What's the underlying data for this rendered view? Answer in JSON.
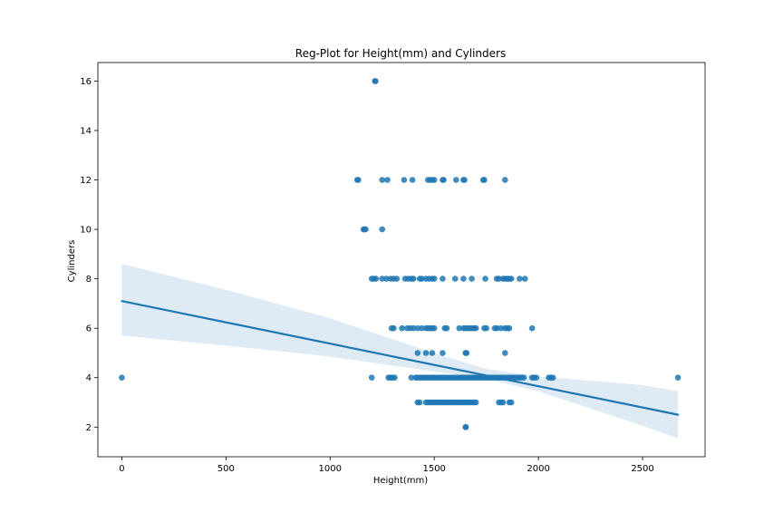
{
  "chart_data": {
    "type": "scatter",
    "title": "Reg-Plot for Height(mm) and Cylinders",
    "xlabel": "Height(mm)",
    "ylabel": "Cylinders",
    "xlim": [
      -115,
      2800
    ],
    "ylim": [
      0.8,
      16.75
    ],
    "xticks": [
      0,
      500,
      1000,
      1500,
      2000,
      2500
    ],
    "yticks": [
      2,
      4,
      6,
      8,
      10,
      12,
      14,
      16
    ],
    "grid": false,
    "legend": "none",
    "colors": {
      "points": "#1f77b4",
      "line": "#1f77b4",
      "band": "#1f77b4"
    },
    "point_opacity": 0.85,
    "band_opacity": 0.15,
    "series": [
      {
        "kind": "scatter",
        "points": [
          [
            1215,
            16
          ],
          [
            1218,
            16
          ],
          [
            1130,
            12
          ],
          [
            1135,
            12
          ],
          [
            1250,
            12
          ],
          [
            1275,
            12
          ],
          [
            1355,
            12
          ],
          [
            1395,
            12
          ],
          [
            1470,
            12
          ],
          [
            1480,
            12
          ],
          [
            1490,
            12
          ],
          [
            1500,
            12
          ],
          [
            1540,
            12
          ],
          [
            1545,
            12
          ],
          [
            1605,
            12
          ],
          [
            1640,
            12
          ],
          [
            1645,
            12
          ],
          [
            1735,
            12
          ],
          [
            1740,
            12
          ],
          [
            1840,
            12
          ],
          [
            1160,
            10
          ],
          [
            1165,
            10
          ],
          [
            1170,
            10
          ],
          [
            1250,
            10
          ],
          [
            1200,
            8
          ],
          [
            1210,
            8
          ],
          [
            1220,
            8
          ],
          [
            1250,
            8
          ],
          [
            1270,
            8
          ],
          [
            1290,
            8
          ],
          [
            1305,
            8
          ],
          [
            1320,
            8
          ],
          [
            1360,
            8
          ],
          [
            1375,
            8
          ],
          [
            1390,
            8
          ],
          [
            1400,
            8
          ],
          [
            1430,
            8
          ],
          [
            1440,
            8
          ],
          [
            1460,
            8
          ],
          [
            1475,
            8
          ],
          [
            1490,
            8
          ],
          [
            1500,
            8
          ],
          [
            1540,
            8
          ],
          [
            1600,
            8
          ],
          [
            1640,
            8
          ],
          [
            1680,
            8
          ],
          [
            1745,
            8
          ],
          [
            1800,
            8
          ],
          [
            1810,
            8
          ],
          [
            1830,
            8
          ],
          [
            1840,
            8
          ],
          [
            1850,
            8
          ],
          [
            1860,
            8
          ],
          [
            1870,
            8
          ],
          [
            1910,
            8
          ],
          [
            1935,
            8
          ],
          [
            1295,
            6
          ],
          [
            1305,
            6
          ],
          [
            1345,
            6
          ],
          [
            1370,
            6
          ],
          [
            1385,
            6
          ],
          [
            1400,
            6
          ],
          [
            1420,
            6
          ],
          [
            1440,
            6
          ],
          [
            1460,
            6
          ],
          [
            1470,
            6
          ],
          [
            1480,
            6
          ],
          [
            1490,
            6
          ],
          [
            1500,
            6
          ],
          [
            1550,
            6
          ],
          [
            1560,
            6
          ],
          [
            1620,
            6
          ],
          [
            1640,
            6
          ],
          [
            1650,
            6
          ],
          [
            1660,
            6
          ],
          [
            1670,
            6
          ],
          [
            1680,
            6
          ],
          [
            1690,
            6
          ],
          [
            1700,
            6
          ],
          [
            1740,
            6
          ],
          [
            1750,
            6
          ],
          [
            1790,
            6
          ],
          [
            1800,
            6
          ],
          [
            1820,
            6
          ],
          [
            1840,
            6
          ],
          [
            1850,
            6
          ],
          [
            1860,
            6
          ],
          [
            1970,
            6
          ],
          [
            1420,
            5
          ],
          [
            1460,
            5
          ],
          [
            1490,
            5
          ],
          [
            1540,
            5
          ],
          [
            1650,
            5
          ],
          [
            1655,
            5
          ],
          [
            1840,
            5
          ],
          [
            0,
            4
          ],
          [
            1200,
            4
          ],
          [
            1280,
            4
          ],
          [
            1290,
            4
          ],
          [
            1300,
            4
          ],
          [
            1310,
            4
          ],
          [
            1390,
            4
          ],
          [
            1410,
            4
          ],
          [
            1420,
            4
          ],
          [
            1430,
            4
          ],
          [
            1440,
            4
          ],
          [
            1450,
            4
          ],
          [
            1460,
            4
          ],
          [
            1470,
            4
          ],
          [
            1480,
            4
          ],
          [
            1490,
            4
          ],
          [
            1500,
            4
          ],
          [
            1510,
            4
          ],
          [
            1520,
            4
          ],
          [
            1530,
            4
          ],
          [
            1540,
            4
          ],
          [
            1550,
            4
          ],
          [
            1560,
            4
          ],
          [
            1570,
            4
          ],
          [
            1580,
            4
          ],
          [
            1590,
            4
          ],
          [
            1600,
            4
          ],
          [
            1610,
            4
          ],
          [
            1620,
            4
          ],
          [
            1630,
            4
          ],
          [
            1640,
            4
          ],
          [
            1650,
            4
          ],
          [
            1660,
            4
          ],
          [
            1670,
            4
          ],
          [
            1680,
            4
          ],
          [
            1690,
            4
          ],
          [
            1700,
            4
          ],
          [
            1710,
            4
          ],
          [
            1720,
            4
          ],
          [
            1730,
            4
          ],
          [
            1740,
            4
          ],
          [
            1750,
            4
          ],
          [
            1760,
            4
          ],
          [
            1770,
            4
          ],
          [
            1780,
            4
          ],
          [
            1790,
            4
          ],
          [
            1800,
            4
          ],
          [
            1810,
            4
          ],
          [
            1820,
            4
          ],
          [
            1830,
            4
          ],
          [
            1840,
            4
          ],
          [
            1850,
            4
          ],
          [
            1860,
            4
          ],
          [
            1870,
            4
          ],
          [
            1880,
            4
          ],
          [
            1890,
            4
          ],
          [
            1900,
            4
          ],
          [
            1910,
            4
          ],
          [
            1920,
            4
          ],
          [
            1930,
            4
          ],
          [
            1970,
            4
          ],
          [
            1980,
            4
          ],
          [
            1990,
            4
          ],
          [
            2050,
            4
          ],
          [
            2060,
            4
          ],
          [
            2070,
            4
          ],
          [
            2670,
            4
          ],
          [
            1420,
            3
          ],
          [
            1430,
            3
          ],
          [
            1460,
            3
          ],
          [
            1470,
            3
          ],
          [
            1480,
            3
          ],
          [
            1490,
            3
          ],
          [
            1500,
            3
          ],
          [
            1510,
            3
          ],
          [
            1520,
            3
          ],
          [
            1530,
            3
          ],
          [
            1540,
            3
          ],
          [
            1550,
            3
          ],
          [
            1560,
            3
          ],
          [
            1570,
            3
          ],
          [
            1580,
            3
          ],
          [
            1590,
            3
          ],
          [
            1600,
            3
          ],
          [
            1610,
            3
          ],
          [
            1620,
            3
          ],
          [
            1630,
            3
          ],
          [
            1640,
            3
          ],
          [
            1650,
            3
          ],
          [
            1660,
            3
          ],
          [
            1670,
            3
          ],
          [
            1680,
            3
          ],
          [
            1690,
            3
          ],
          [
            1700,
            3
          ],
          [
            1810,
            3
          ],
          [
            1820,
            3
          ],
          [
            1830,
            3
          ],
          [
            1860,
            3
          ],
          [
            1870,
            3
          ],
          [
            1650,
            2
          ],
          [
            1652,
            2
          ]
        ]
      },
      {
        "kind": "regression",
        "line": [
          [
            0,
            7.1
          ],
          [
            2670,
            2.5
          ]
        ],
        "ci_upper": [
          [
            0,
            8.6
          ],
          [
            500,
            7.55
          ],
          [
            1000,
            6.4
          ],
          [
            1500,
            5.0
          ],
          [
            1750,
            4.35
          ],
          [
            2000,
            4.05
          ],
          [
            2500,
            3.7
          ],
          [
            2670,
            3.45
          ]
        ],
        "ci_lower": [
          [
            0,
            5.7
          ],
          [
            500,
            5.3
          ],
          [
            1000,
            4.85
          ],
          [
            1500,
            4.25
          ],
          [
            1750,
            3.95
          ],
          [
            2000,
            3.45
          ],
          [
            2500,
            2.05
          ],
          [
            2670,
            1.55
          ]
        ]
      }
    ]
  }
}
